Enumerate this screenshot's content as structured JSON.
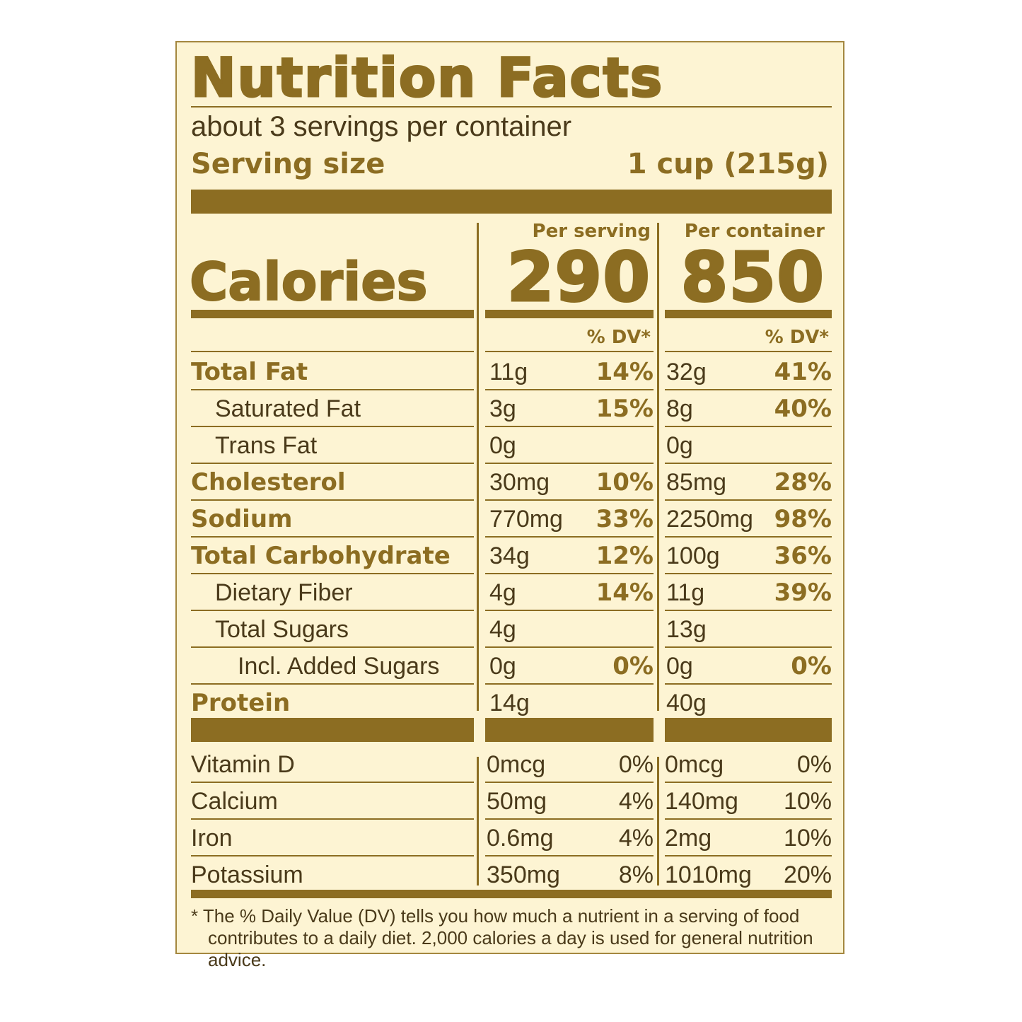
{
  "label": {
    "title": "Nutrition Facts",
    "servings_per_container": "about 3 servings per container",
    "serving_size_label": "Serving size",
    "serving_size_value": "1 cup (215g)",
    "calories_label": "Calories",
    "per_serving_header": "Per serving",
    "per_container_header": "Per container",
    "calories_per_serving": "290",
    "calories_per_container": "850",
    "dv_header": "% DV*",
    "nutrients": [
      {
        "name": "Total Fat",
        "style": "bold",
        "indent": 0,
        "serving_amount": "11g",
        "serving_dv": "14%",
        "container_amount": "32g",
        "container_dv": "41%"
      },
      {
        "name": "Saturated Fat",
        "style": "plain",
        "indent": 1,
        "serving_amount": "3g",
        "serving_dv": "15%",
        "container_amount": "8g",
        "container_dv": "40%"
      },
      {
        "name": "Trans Fat",
        "style": "plain",
        "indent": 1,
        "serving_amount": "0g",
        "serving_dv": "",
        "container_amount": "0g",
        "container_dv": ""
      },
      {
        "name": "Cholesterol",
        "style": "bold",
        "indent": 0,
        "serving_amount": "30mg",
        "serving_dv": "10%",
        "container_amount": "85mg",
        "container_dv": "28%"
      },
      {
        "name": "Sodium",
        "style": "bold",
        "indent": 0,
        "serving_amount": "770mg",
        "serving_dv": "33%",
        "container_amount": "2250mg",
        "container_dv": "98%"
      },
      {
        "name": "Total Carbohydrate",
        "style": "bold",
        "indent": 0,
        "serving_amount": "34g",
        "serving_dv": "12%",
        "container_amount": "100g",
        "container_dv": "36%"
      },
      {
        "name": "Dietary Fiber",
        "style": "plain",
        "indent": 1,
        "serving_amount": "4g",
        "serving_dv": "14%",
        "container_amount": "11g",
        "container_dv": "39%"
      },
      {
        "name": "Total Sugars",
        "style": "plain",
        "indent": 1,
        "serving_amount": "4g",
        "serving_dv": "",
        "container_amount": "13g",
        "container_dv": ""
      },
      {
        "name": "Incl. Added Sugars",
        "style": "plain",
        "indent": 2,
        "serving_amount": "0g",
        "serving_dv": "0%",
        "container_amount": "0g",
        "container_dv": "0%"
      },
      {
        "name": "Protein",
        "style": "bold",
        "indent": 0,
        "serving_amount": "14g",
        "serving_dv": "",
        "container_amount": "40g",
        "container_dv": ""
      }
    ],
    "vitamins": [
      {
        "name": "Vitamin D",
        "serving_amount": "0mcg",
        "serving_dv": "0%",
        "container_amount": "0mcg",
        "container_dv": "0%"
      },
      {
        "name": "Calcium",
        "serving_amount": "50mg",
        "serving_dv": "4%",
        "container_amount": "140mg",
        "container_dv": "10%"
      },
      {
        "name": "Iron",
        "serving_amount": "0.6mg",
        "serving_dv": "4%",
        "container_amount": "2mg",
        "container_dv": "10%"
      },
      {
        "name": "Potassium",
        "serving_amount": "350mg",
        "serving_dv": "8%",
        "container_amount": "1010mg",
        "container_dv": "20%"
      }
    ],
    "footnote": "* The % Daily Value (DV) tells you how much a nutrient in a serving of food contributes to a daily diet. 2,000 calories a day is used for general nutrition advice."
  },
  "colors": {
    "background": "#fdf4d3",
    "accent": "#8c6d22",
    "text": "#4a3a1a"
  }
}
